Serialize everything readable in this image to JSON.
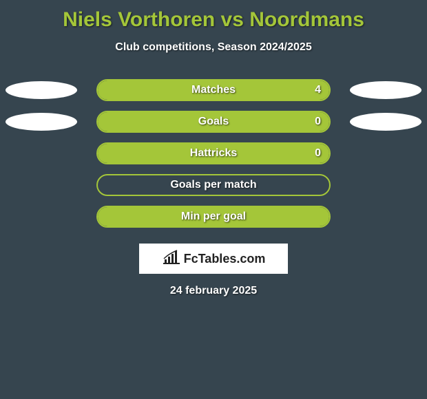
{
  "title": "Niels Vorthoren vs Noordmans",
  "subtitle": "Club competitions, Season 2024/2025",
  "colors": {
    "background": "#36454f",
    "accent": "#a4c639",
    "text": "#ffffff",
    "ellipse": "#ffffff",
    "logo_bg": "#ffffff",
    "logo_text": "#222222"
  },
  "typography": {
    "title_fontsize": 30,
    "subtitle_fontsize": 16,
    "bar_label_fontsize": 16,
    "date_fontsize": 16
  },
  "stats": [
    {
      "label": "Matches",
      "left_ellipse": true,
      "right_ellipse": true,
      "value_right": "4",
      "fill_side": "right",
      "fill_pct": 100
    },
    {
      "label": "Goals",
      "left_ellipse": true,
      "right_ellipse": true,
      "value_right": "0",
      "fill_side": "right",
      "fill_pct": 100
    },
    {
      "label": "Hattricks",
      "left_ellipse": false,
      "right_ellipse": false,
      "value_right": "0",
      "fill_side": "right",
      "fill_pct": 100
    },
    {
      "label": "Goals per match",
      "left_ellipse": false,
      "right_ellipse": false,
      "value_right": "",
      "fill_side": "none",
      "fill_pct": 0
    },
    {
      "label": "Min per goal",
      "left_ellipse": false,
      "right_ellipse": false,
      "value_right": "",
      "fill_side": "right",
      "fill_pct": 100
    }
  ],
  "logo": {
    "text": "FcTables.com"
  },
  "date": "24 february 2025"
}
